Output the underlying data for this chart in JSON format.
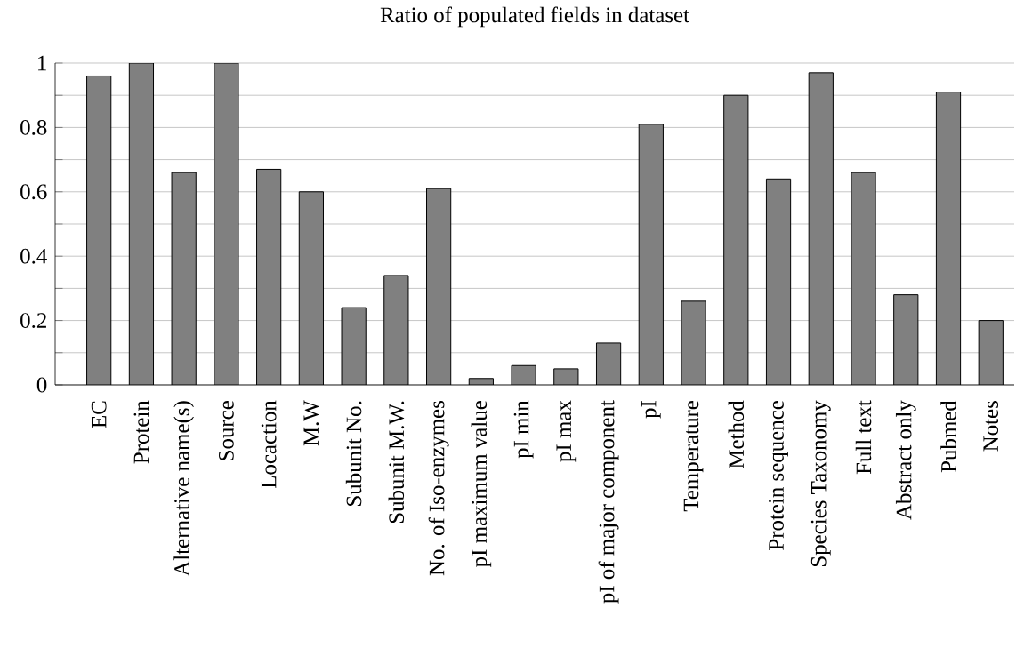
{
  "chart_data": {
    "type": "bar",
    "title": "Ratio of populated fields in dataset",
    "categories": [
      "EC",
      "Protein",
      "Alternative name(s)",
      "Source",
      "Locaction",
      "M.W",
      "Subunit No.",
      "Subunit M.W.",
      "No. of Iso-enzymes",
      "pI maximum value",
      "pI min",
      "pI max",
      "pI of major component",
      "pI",
      "Temperature",
      "Method",
      "Protein sequence",
      "Species Taxonomy",
      "Full text",
      "Abstract only",
      "Pubmed",
      "Notes"
    ],
    "values": [
      0.96,
      1.0,
      0.66,
      1.0,
      0.67,
      0.6,
      0.24,
      0.34,
      0.61,
      0.02,
      0.06,
      0.05,
      0.13,
      0.81,
      0.26,
      0.9,
      0.64,
      0.97,
      0.66,
      0.28,
      0.91,
      0.2
    ],
    "color": "#808080",
    "ylim": [
      0,
      1
    ],
    "yticks": [
      0,
      {
        "value": 0.1,
        "label": null
      },
      0.2,
      {
        "value": 0.3,
        "label": null
      },
      0.4,
      {
        "value": 0.5,
        "label": null
      },
      0.6,
      {
        "value": 0.7,
        "label": null
      },
      0.8,
      {
        "value": 0.9,
        "label": null
      },
      1
    ],
    "grid": "y"
  }
}
